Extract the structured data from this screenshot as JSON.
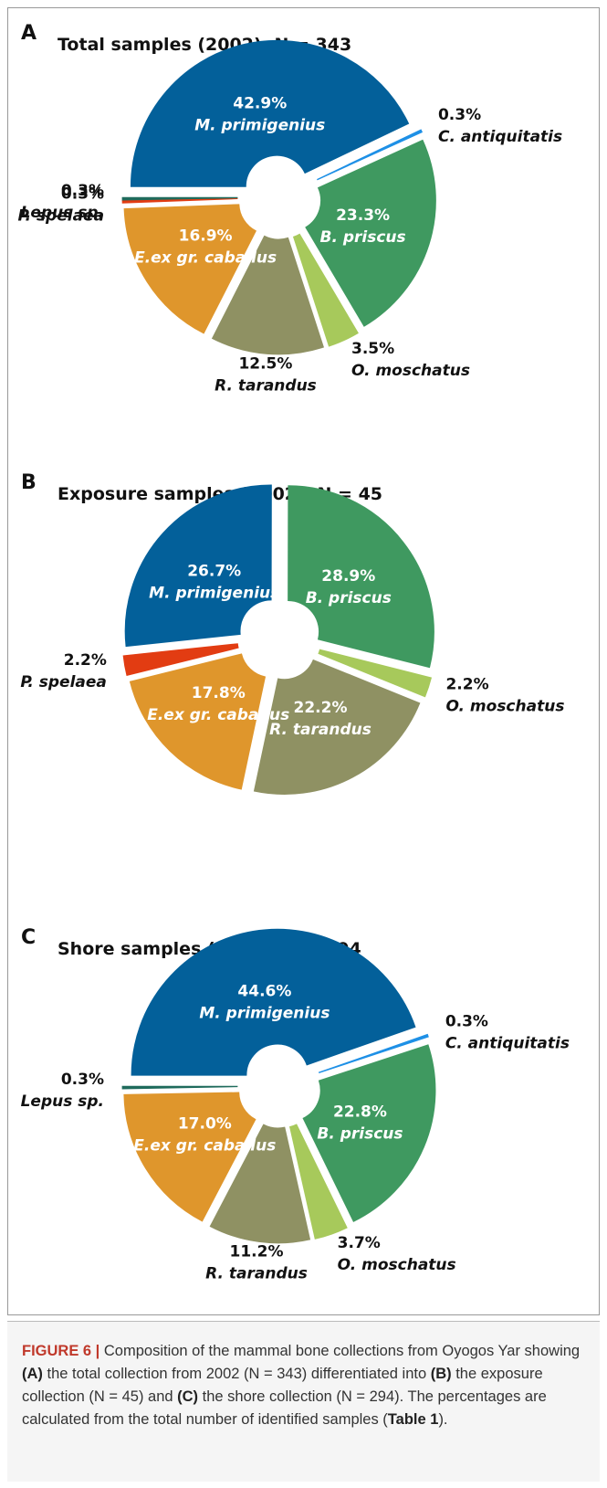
{
  "chart_data": [
    {
      "type": "pie",
      "panel": "A",
      "title": "Total samples (2002), N = 343",
      "categories": [
        "M. primigenius",
        "C. antiquitatis",
        "B. priscus",
        "O. moschatus",
        "R. tarandus",
        "E.ex gr. caballus",
        "P. spelaea",
        "Lepus sp."
      ],
      "values": [
        42.9,
        0.3,
        23.3,
        3.5,
        12.5,
        16.9,
        0.3,
        0.3
      ],
      "value_labels": [
        "42.9%",
        "0.3%",
        "23.3%",
        "3.5%",
        "12.5%",
        "16.9%",
        "0.3%",
        "0.3%"
      ],
      "colors": [
        "#03609a",
        "#1e90e6",
        "#3f9960",
        "#a7c95b",
        "#8f9163",
        "#df962c",
        "#e23c12",
        "#1f6b5c"
      ]
    },
    {
      "type": "pie",
      "panel": "B",
      "title": "Exposure samples (2002), N = 45",
      "categories": [
        "M. primigenius",
        "B. priscus",
        "O. moschatus",
        "R. tarandus",
        "E.ex gr. caballus",
        "P. spelaea"
      ],
      "values": [
        26.7,
        28.9,
        2.2,
        22.2,
        17.8,
        2.2
      ],
      "value_labels": [
        "26.7%",
        "28.9%",
        "2.2%",
        "22.2%",
        "17.8%",
        "2.2%"
      ],
      "colors": [
        "#03609a",
        "#3f9960",
        "#a7c95b",
        "#8f9163",
        "#df962c",
        "#e23c12"
      ]
    },
    {
      "type": "pie",
      "panel": "C",
      "title": "Shore samples (2002), N = 294",
      "categories": [
        "M. primigenius",
        "C. antiquitatis",
        "B. priscus",
        "O. moschatus",
        "R. tarandus",
        "E.ex gr. caballus",
        "Lepus sp."
      ],
      "values": [
        44.6,
        0.3,
        22.8,
        3.7,
        11.2,
        17.0,
        0.3
      ],
      "value_labels": [
        "44.6%",
        "0.3%",
        "22.8%",
        "3.7%",
        "11.2%",
        "17.0%",
        "0.3%"
      ],
      "colors": [
        "#03609a",
        "#1e90e6",
        "#3f9960",
        "#a7c95b",
        "#8f9163",
        "#df962c",
        "#1f6b5c"
      ]
    }
  ],
  "caption": {
    "parts": [
      "FIGURE 6 |",
      " Composition of the mammal bone collections from Oyogos Yar showing ",
      "(A)",
      " the total collection from 2002 (N = 343) differentiated into ",
      "(B)",
      " the exposure collection (N = 45) and ",
      "(C)",
      " the shore collection (N = 294). The percentages are calculated from the total number of identified samples (",
      "Table 1",
      ")."
    ]
  }
}
